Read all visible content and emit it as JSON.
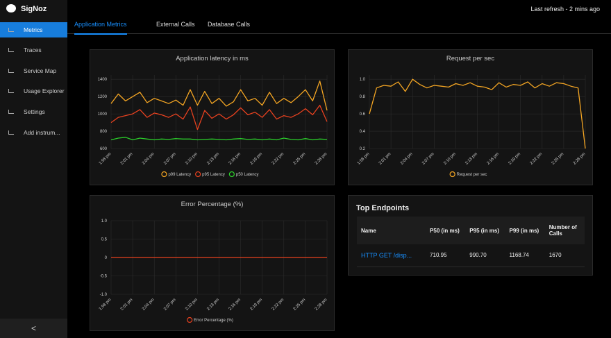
{
  "sidebar": {
    "brand": "SigNoz",
    "items": [
      "Metrics",
      "Traces",
      "Service Map",
      "Usage Explorer",
      "Settings",
      "Add instrum..."
    ],
    "collapse": "<"
  },
  "header": {
    "refresh": "Last refresh - 2 mins ago"
  },
  "tabs": [
    "Application Metrics",
    "External Calls",
    "Database Calls"
  ],
  "chart_data": [
    {
      "type": "line",
      "title": "Application latency in ms",
      "categories": [
        "1:58 pm",
        null,
        null,
        "2:01 pm",
        null,
        null,
        "2:04 pm",
        null,
        null,
        "2:07 pm",
        null,
        null,
        "2:10 pm",
        null,
        null,
        "2:13 pm",
        null,
        null,
        "2:16 pm",
        null,
        null,
        "2:19 pm",
        null,
        null,
        "2:22 pm",
        null,
        null,
        "2:25 pm",
        null,
        null,
        "2:28 pm"
      ],
      "ylim": [
        600,
        1450
      ],
      "yticks": [
        600,
        800,
        1000,
        1200,
        1400
      ],
      "grid": true,
      "series": [
        {
          "name": "p99 Latency",
          "color": "#f5a623",
          "values": [
            1120,
            1230,
            1150,
            1200,
            1250,
            1130,
            1180,
            1150,
            1120,
            1160,
            1100,
            1280,
            1100,
            1260,
            1120,
            1180,
            1090,
            1140,
            1280,
            1150,
            1180,
            1100,
            1250,
            1120,
            1180,
            1130,
            1200,
            1280,
            1150,
            1380,
            1040
          ]
        },
        {
          "name": "p95 Latency",
          "color": "#e8411f",
          "values": [
            900,
            960,
            980,
            1000,
            1050,
            960,
            1010,
            990,
            960,
            1000,
            940,
            1080,
            820,
            1040,
            950,
            1000,
            940,
            990,
            1070,
            990,
            1020,
            960,
            1050,
            940,
            980,
            960,
            1000,
            1060,
            990,
            1100,
            910
          ]
        },
        {
          "name": "p50 Latency",
          "color": "#2bd12b",
          "values": [
            700,
            720,
            730,
            700,
            720,
            710,
            700,
            710,
            705,
            715,
            710,
            710,
            700,
            705,
            710,
            705,
            700,
            710,
            715,
            705,
            710,
            700,
            710,
            700,
            720,
            705,
            700,
            715,
            700,
            710,
            705
          ]
        }
      ]
    },
    {
      "type": "line",
      "title": "Request per sec",
      "categories": [
        "1:58 pm",
        null,
        null,
        "2:01 pm",
        null,
        null,
        "2:04 pm",
        null,
        null,
        "2:07 pm",
        null,
        null,
        "2:10 pm",
        null,
        null,
        "2:13 pm",
        null,
        null,
        "2:16 pm",
        null,
        null,
        "2:19 pm",
        null,
        null,
        "2:22 pm",
        null,
        null,
        "2:25 pm",
        null,
        null,
        "2:28 pm"
      ],
      "ylim": [
        0.2,
        1.05
      ],
      "yticks": [
        0.2,
        0.4,
        0.6,
        0.8,
        {
          "value": 1,
          "label": "1.0"
        }
      ],
      "grid": true,
      "series": [
        {
          "name": "Request per sec",
          "color": "#f5a623",
          "values": [
            0.6,
            0.9,
            0.93,
            0.92,
            0.97,
            0.86,
            1.0,
            0.94,
            0.9,
            0.93,
            0.92,
            0.91,
            0.95,
            0.93,
            0.96,
            0.92,
            0.91,
            0.88,
            0.96,
            0.91,
            0.94,
            0.93,
            0.97,
            0.9,
            0.95,
            0.92,
            0.96,
            0.95,
            0.92,
            0.9,
            0.2
          ]
        }
      ]
    },
    {
      "type": "line",
      "title": "Error Percentage (%)",
      "categories": [
        "1:58 pm",
        null,
        null,
        "2:01 pm",
        null,
        null,
        "2:04 pm",
        null,
        null,
        "2:07 pm",
        null,
        null,
        "2:10 pm",
        null,
        null,
        "2:13 pm",
        null,
        null,
        "2:16 pm",
        null,
        null,
        "2:19 pm",
        null,
        null,
        "2:22 pm",
        null,
        null,
        "2:25 pm",
        null,
        null,
        "2:28 pm"
      ],
      "ylim": [
        -1,
        1
      ],
      "yticks": [
        {
          "value": -1,
          "label": "-1.0"
        },
        -0.5,
        0,
        0.5,
        {
          "value": 1,
          "label": "1.0"
        }
      ],
      "grid": true,
      "series": [
        {
          "name": "Error Percentage (%)",
          "color": "#e8411f",
          "values": [
            0,
            0,
            0,
            0,
            0,
            0,
            0,
            0,
            0,
            0,
            0,
            0,
            0,
            0,
            0,
            0,
            0,
            0,
            0,
            0,
            0,
            0,
            0,
            0,
            0,
            0,
            0,
            0,
            0,
            0,
            0
          ]
        }
      ]
    }
  ],
  "table": {
    "title": "Top Endpoints",
    "columns": [
      "Name",
      "P50 (in ms)",
      "P95 (in ms)",
      "P99 (in ms)",
      "Number of Calls"
    ],
    "rows": [
      [
        "HTTP GET /disp...",
        "710.95",
        "990.70",
        "1168.74",
        "1670"
      ]
    ]
  }
}
